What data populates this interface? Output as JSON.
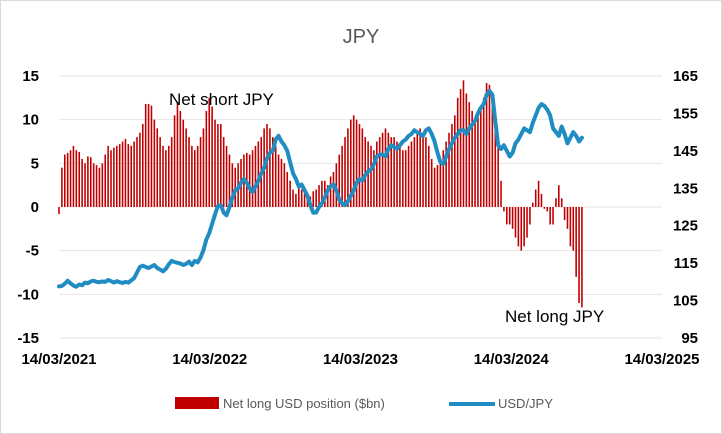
{
  "chart_data": {
    "type": "bar+line",
    "title": "JPY",
    "x_tick_labels": [
      "14/03/2021",
      "14/03/2022",
      "14/03/2023",
      "14/03/2024",
      "14/03/2025"
    ],
    "y_left": {
      "ticks": [
        "15",
        "10",
        "5",
        "0",
        "-5",
        "-10",
        "-15"
      ],
      "range": [
        -15,
        15
      ]
    },
    "y_right": {
      "ticks": [
        "165",
        "155",
        "145",
        "135",
        "125",
        "115",
        "105",
        "95"
      ],
      "range": [
        95,
        165
      ]
    },
    "annotations": [
      "Net short JPY",
      "Net long JPY"
    ],
    "colors": {
      "bars": "#c00000",
      "line": "#1f8cc2"
    },
    "grid": true,
    "legend_position": "bottom",
    "series": [
      {
        "name": "Net long USD position ($bn)",
        "axis": "left",
        "kind": "bar",
        "x_start": "2021-03-14",
        "x_step_days": 7,
        "values": [
          -0.8,
          4.5,
          6.0,
          6.2,
          6.5,
          7.0,
          6.5,
          6.3,
          5.5,
          5.0,
          5.8,
          5.7,
          5.0,
          4.8,
          4.5,
          5.0,
          6.0,
          7.0,
          6.5,
          6.8,
          7.0,
          7.2,
          7.5,
          7.8,
          7.2,
          7.0,
          7.5,
          8.0,
          8.5,
          9.5,
          11.8,
          11.8,
          11.6,
          10.0,
          9.0,
          8.0,
          7.0,
          6.5,
          7.0,
          8.0,
          10.5,
          12.0,
          11.0,
          10.0,
          9.0,
          8.0,
          7.0,
          6.5,
          7.0,
          8.0,
          9.0,
          11.0,
          12.5,
          11.5,
          10.0,
          9.5,
          9.5,
          8.0,
          7.0,
          6.0,
          5.0,
          4.5,
          5.0,
          5.5,
          6.0,
          6.2,
          6.0,
          6.5,
          7.0,
          7.5,
          8.0,
          9.0,
          9.5,
          9.0,
          8.0,
          7.0,
          6.0,
          5.5,
          5.0,
          4.0,
          3.0,
          2.0,
          1.5,
          2.5,
          2.0,
          1.5,
          1.0,
          1.2,
          1.8,
          2.0,
          2.5,
          3.0,
          3.0,
          2.5,
          3.5,
          4.0,
          5.0,
          6.0,
          7.0,
          8.0,
          9.0,
          10.0,
          10.5,
          10.0,
          9.5,
          9.0,
          8.0,
          7.5,
          7.0,
          6.5,
          7.5,
          8.0,
          8.5,
          9.0,
          8.5,
          8.0,
          8.0,
          7.5,
          7.0,
          6.5,
          6.5,
          7.0,
          7.5,
          8.0,
          8.5,
          9.0,
          8.5,
          8.0,
          7.0,
          5.5,
          4.5,
          4.8,
          5.5,
          6.5,
          7.5,
          8.5,
          9.5,
          10.5,
          12.5,
          13.5,
          14.5,
          13.0,
          12.0,
          11.0,
          10.0,
          10.5,
          11.5,
          12.5,
          14.2,
          14.0,
          12.5,
          10.0,
          7.0,
          3.0,
          -0.5,
          -2.0,
          -2.0,
          -2.5,
          -3.5,
          -4.5,
          -5.0,
          -4.5,
          -3.5,
          -2.0,
          0.5,
          2.0,
          3.0,
          1.5,
          -0.2,
          -0.5,
          -2.0,
          -2.0,
          1.0,
          2.5,
          1.0,
          -1.5,
          -2.5,
          -4.5,
          -5.0,
          -8.0,
          -11.0,
          -11.5
        ]
      },
      {
        "name": "USD/JPY",
        "axis": "right",
        "kind": "line",
        "x_start": "2021-03-14",
        "x_step_days": 7,
        "values": [
          108.8,
          108.9,
          109.5,
          110.3,
          109.6,
          109.0,
          108.7,
          109.3,
          109.1,
          109.8,
          109.6,
          110.1,
          110.3,
          110.0,
          109.9,
          110.1,
          110.0,
          110.5,
          110.2,
          109.8,
          110.2,
          109.9,
          109.7,
          110.0,
          109.8,
          110.4,
          111.0,
          112.5,
          114.0,
          114.3,
          114.0,
          113.7,
          114.1,
          114.5,
          113.7,
          113.3,
          112.8,
          113.5,
          114.7,
          115.6,
          115.3,
          115.1,
          114.9,
          114.5,
          114.8,
          115.4,
          114.5,
          115.6,
          115.2,
          116.5,
          118.5,
          121.3,
          123.0,
          125.5,
          128.0,
          130.3,
          130.5,
          128.5,
          127.8,
          130.0,
          132.5,
          134.5,
          135.0,
          136.5,
          137.5,
          136.5,
          135.0,
          134.0,
          135.5,
          137.0,
          139.0,
          140.5,
          143.0,
          144.5,
          145.0,
          148.0,
          149.0,
          147.5,
          146.5,
          145.0,
          142.0,
          139.0,
          137.5,
          135.5,
          136.0,
          134.5,
          133.0,
          130.5,
          128.5,
          128.5,
          130.0,
          131.0,
          132.5,
          134.5,
          135.5,
          136.0,
          134.5,
          132.0,
          131.0,
          130.5,
          131.5,
          133.0,
          134.5,
          136.5,
          137.5,
          137.0,
          138.5,
          139.5,
          140.0,
          141.5,
          143.5,
          144.0,
          144.0,
          143.5,
          145.5,
          146.5,
          146.0,
          145.5,
          146.5,
          147.5,
          148.0,
          149.0,
          149.5,
          150.5,
          150.0,
          149.5,
          149.0,
          150.5,
          151.0,
          149.5,
          147.5,
          144.5,
          142.0,
          141.5,
          143.5,
          145.5,
          147.0,
          148.5,
          149.5,
          150.5,
          150.5,
          149.5,
          151.0,
          152.0,
          153.0,
          155.0,
          156.5,
          157.5,
          160.0,
          161.0,
          160.0,
          153.0,
          146.5,
          145.5,
          146.5,
          145.0,
          143.5,
          144.5,
          147.0,
          148.0,
          149.5,
          151.0,
          150.5,
          150.0,
          152.5,
          154.5,
          156.5,
          157.5,
          157.0,
          156.0,
          154.5,
          151.0,
          150.0,
          149.0,
          151.5,
          149.5,
          147.0,
          148.5,
          150.0,
          149.0,
          147.5,
          148.5
        ]
      }
    ]
  }
}
